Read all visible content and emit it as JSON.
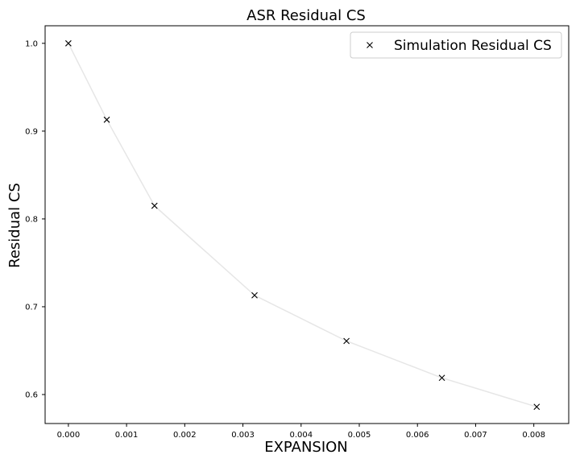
{
  "chart_data": {
    "type": "scatter",
    "title": "ASR Residual CS",
    "xlabel": "EXPANSION",
    "ylabel": "Residual CS",
    "xlim": [
      -0.0004,
      0.0086
    ],
    "ylim": [
      0.567,
      1.02
    ],
    "x_ticks": [
      {
        "value": 0.0,
        "label": "0.000"
      },
      {
        "value": 0.001,
        "label": "0.001"
      },
      {
        "value": 0.002,
        "label": "0.002"
      },
      {
        "value": 0.003,
        "label": "0.003"
      },
      {
        "value": 0.004,
        "label": "0.004"
      },
      {
        "value": 0.005,
        "label": "0.005"
      },
      {
        "value": 0.006,
        "label": "0.006"
      },
      {
        "value": 0.007,
        "label": "0.007"
      },
      {
        "value": 0.008,
        "label": "0.008"
      }
    ],
    "y_ticks": [
      {
        "value": 0.6,
        "label": "0.6"
      },
      {
        "value": 0.7,
        "label": "0.7"
      },
      {
        "value": 0.8,
        "label": "0.8"
      },
      {
        "value": 0.9,
        "label": "0.9"
      },
      {
        "value": 1.0,
        "label": "1.0"
      }
    ],
    "grid": false,
    "legend_position": "top-right",
    "series": [
      {
        "name": "Simulation Residual CS",
        "marker": "x",
        "marker_color": "#000000",
        "line_color": "#e6e6e6",
        "x": [
          0.0,
          0.00066,
          0.00148,
          0.0032,
          0.00478,
          0.00642,
          0.00805
        ],
        "y": [
          1.0,
          0.913,
          0.815,
          0.713,
          0.661,
          0.619,
          0.586
        ]
      }
    ]
  }
}
